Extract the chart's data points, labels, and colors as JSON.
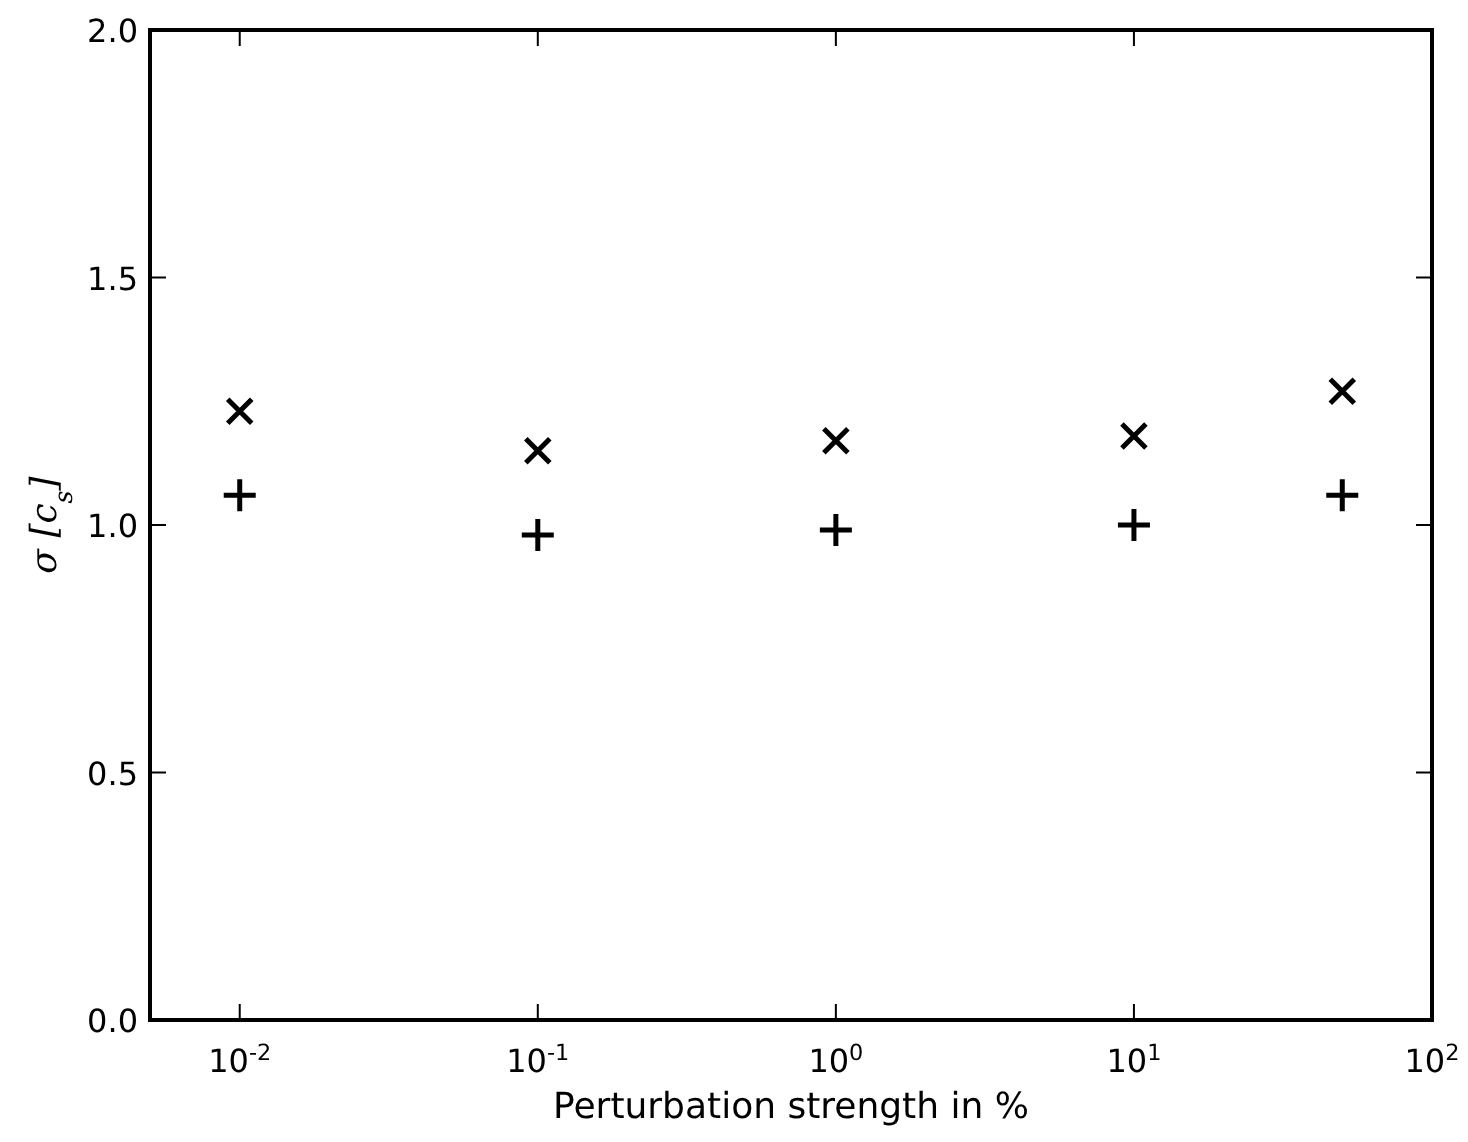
{
  "chart_data": {
    "type": "scatter",
    "xlabel": "Perturbation strength in %",
    "ylabel": "σ [c$_{s}$]",
    "log": "x",
    "x": [
      0.01,
      0.1,
      1,
      10,
      50
    ],
    "series": [
      {
        "color": "#000000",
        "marker": "cross",
        "values": [
          1.23,
          1.15,
          1.17,
          1.18,
          1.27
        ]
      },
      {
        "color": "#000000",
        "marker": "plus",
        "values": [
          1.06,
          0.98,
          0.99,
          1.0,
          1.06
        ]
      }
    ],
    "xlim": [
      0.005,
      100
    ],
    "xticks": [
      {
        "value": 0.01,
        "label": "10$^{-2}$"
      },
      {
        "value": 0.1,
        "label": "10$^{-1}$"
      },
      {
        "value": 1,
        "label": "10$^{0}$"
      },
      {
        "value": 10,
        "label": "10$^{1}$"
      },
      {
        "value": 100,
        "label": "10$^{2}$"
      }
    ],
    "ylim": [
      0,
      2
    ],
    "yticks": [
      {
        "value": 0,
        "label": "0.0"
      },
      {
        "value": 0.5,
        "label": "0.5"
      },
      {
        "value": 1,
        "label": "1.0"
      },
      {
        "value": 1.5,
        "label": "1.5"
      },
      {
        "value": 2,
        "label": "2.0"
      }
    ],
    "grid": false
  }
}
